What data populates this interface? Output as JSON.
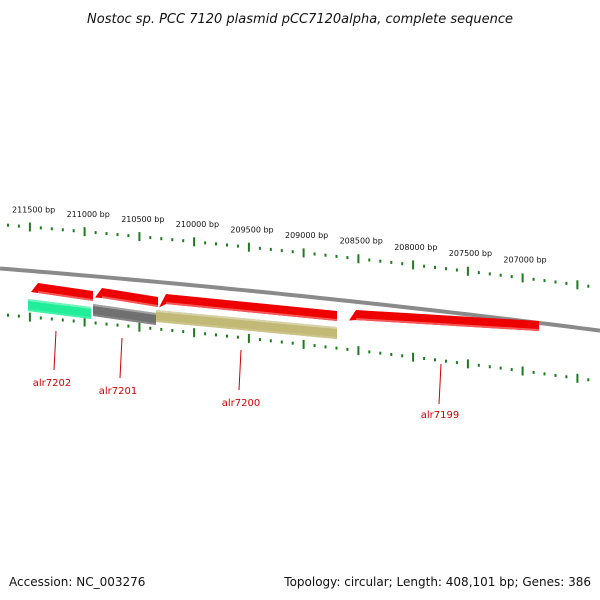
{
  "title": "Nostoc sp. PCC 7120 plasmid pCC7120alpha, complete sequence",
  "footer": {
    "accession": "Accession: NC_003276",
    "summary": "Topology: circular; Length: 408,101 bp; Genes: 386"
  },
  "colors": {
    "backbone": "#8a8a8a",
    "tick": "#1e7a1e",
    "gene_label": "#cc0000",
    "red_gene": "#ee0000",
    "green_gene": "#22ee99",
    "gray_gene": "#707070",
    "khaki_gene": "#c2b977"
  },
  "scale_labels": [
    "211500 bp",
    "211000 bp",
    "210500 bp",
    "210000 bp",
    "209500 bp",
    "209000 bp",
    "208500 bp",
    "208000 bp",
    "207500 bp",
    "207000 bp"
  ],
  "genes": [
    {
      "label": "alr7202",
      "color": "green_gene"
    },
    {
      "label": "alr7201",
      "color": "gray_gene"
    },
    {
      "label": "alr7200",
      "color": "khaki_gene"
    },
    {
      "label": "alr7199",
      "color": "red_gene"
    }
  ],
  "features": [
    {
      "color": "red_gene"
    },
    {
      "color": "red_gene"
    },
    {
      "color": "red_gene"
    },
    {
      "color": "red_gene"
    }
  ]
}
